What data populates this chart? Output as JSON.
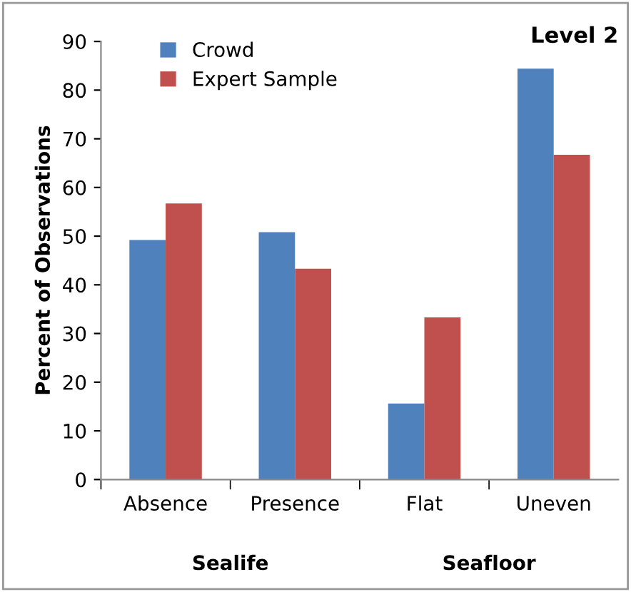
{
  "chart_data": {
    "type": "bar",
    "title": "Level 2",
    "ylabel": "Percent of Observations",
    "categories": [
      "Absence",
      "Presence",
      "Flat",
      "Uneven"
    ],
    "series": [
      {
        "name": "Crowd",
        "color": "#4f81bd",
        "values": [
          49.2,
          50.8,
          15.6,
          84.4
        ]
      },
      {
        "name": "Expert Sample",
        "color": "#c0504d",
        "values": [
          56.7,
          43.3,
          33.3,
          66.7
        ]
      }
    ],
    "annotations": [
      "Sealife",
      "Seafloor"
    ],
    "ylim": [
      0,
      90
    ],
    "yticks": [
      0,
      10,
      20,
      30,
      40,
      50,
      60,
      70,
      80,
      90
    ],
    "grid": false,
    "legend": "top left"
  }
}
